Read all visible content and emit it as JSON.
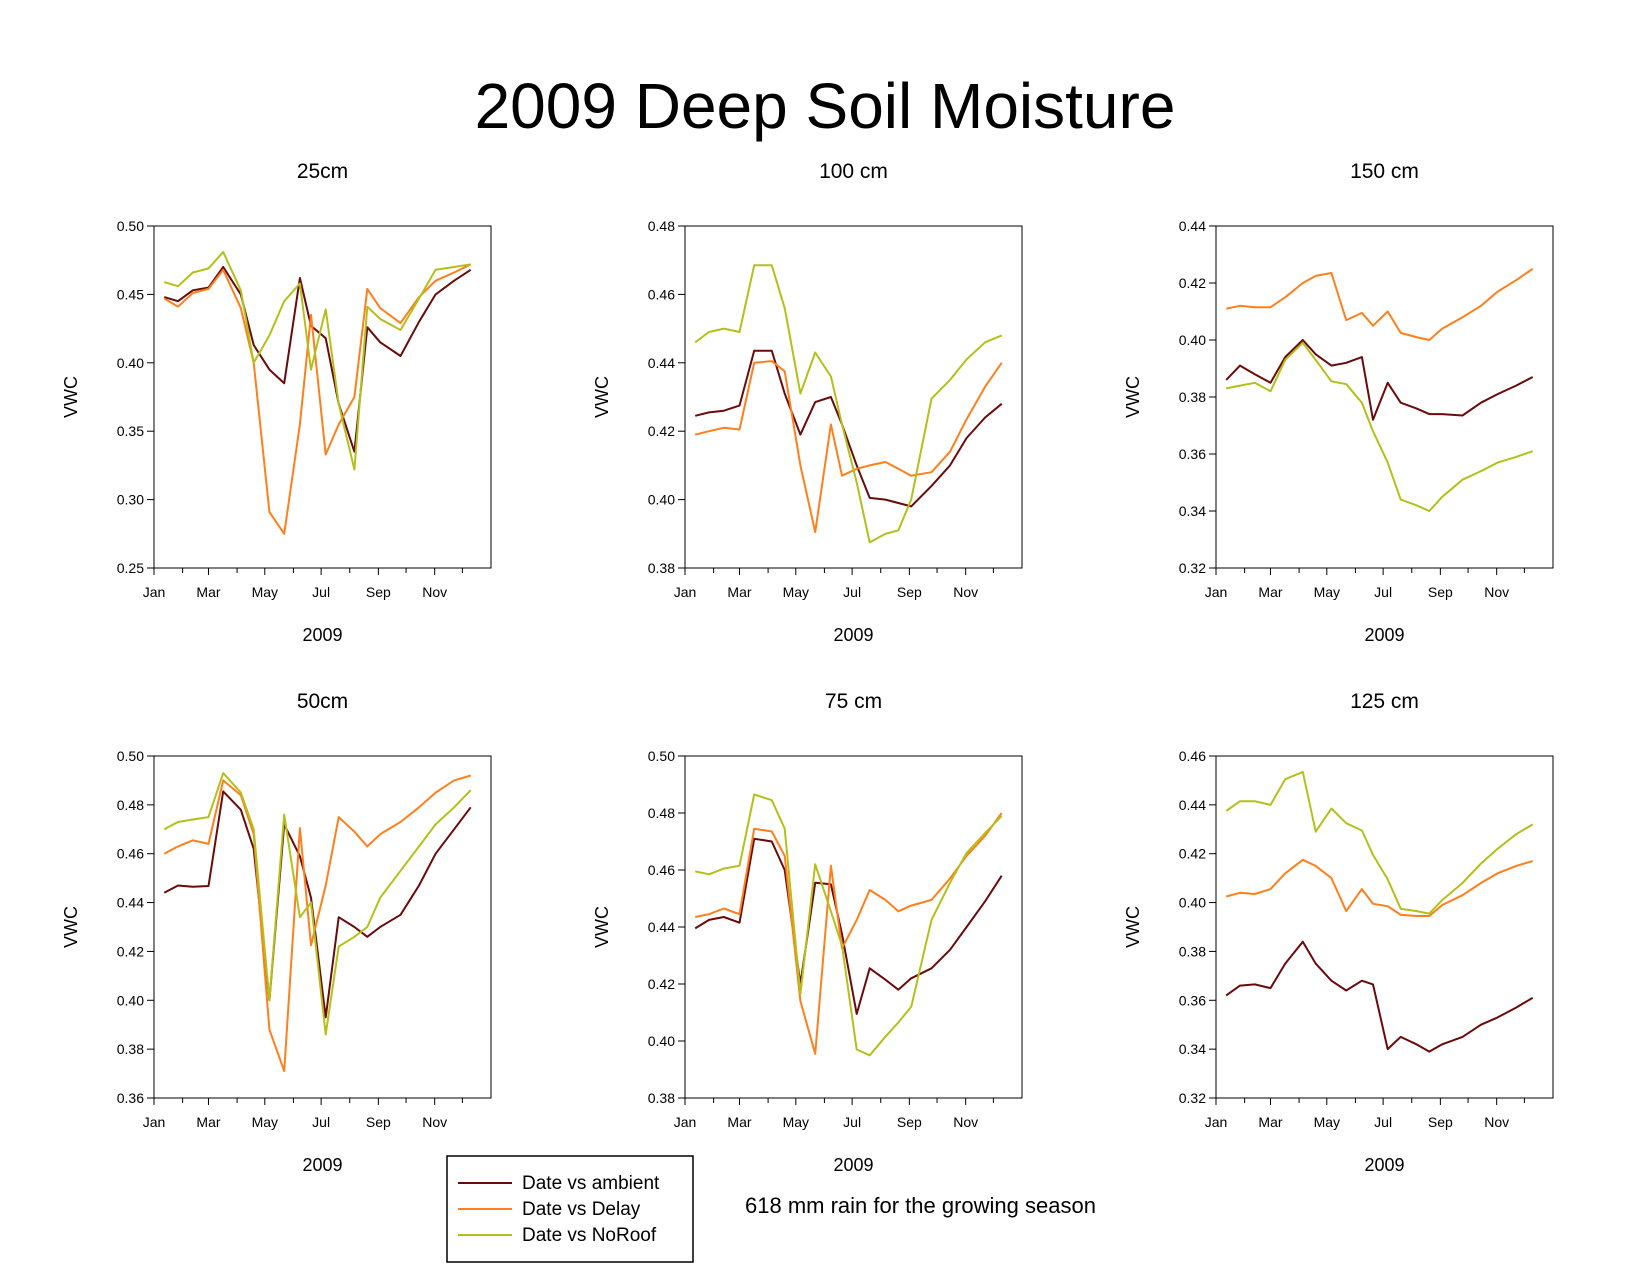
{
  "title": "2009 Deep Soil Moisture",
  "note": "618 mm rain for the growing season",
  "legend": {
    "position": "bottom-center",
    "entries": [
      {
        "label": "Date vs ambient",
        "color": "#6b0a0a"
      },
      {
        "label": "Date vs Delay",
        "color": "#ff7f1c"
      },
      {
        "label": "Date vs NoRoof",
        "color": "#b4c01a"
      }
    ]
  },
  "chart_data": [
    {
      "type": "line",
      "title": "25cm",
      "xlabel": "2009",
      "ylabel": "VWC",
      "xticks": [
        "Jan",
        "Mar",
        "May",
        "Jul",
        "Sep",
        "Nov"
      ],
      "yticks": [
        "0.25",
        "0.30",
        "0.35",
        "0.40",
        "0.45",
        "0.50"
      ],
      "ylim": [
        0.25,
        0.5
      ],
      "x": [
        "2009-01-12",
        "2009-01-27",
        "2009-02-12",
        "2009-03-01",
        "2009-03-17",
        "2009-04-05",
        "2009-04-19",
        "2009-05-06",
        "2009-05-22",
        "2009-06-08",
        "2009-06-20",
        "2009-07-06",
        "2009-07-20",
        "2009-08-06",
        "2009-08-20",
        "2009-09-03",
        "2009-09-25",
        "2009-10-15",
        "2009-11-02",
        "2009-11-22",
        "2009-12-10"
      ],
      "series": [
        {
          "name": "Date vs ambient",
          "values": [
            0.448,
            0.445,
            0.453,
            0.455,
            0.47,
            0.45,
            0.413,
            0.395,
            0.385,
            0.462,
            0.427,
            0.418,
            0.37,
            0.335,
            0.426,
            0.415,
            0.405,
            0.43,
            0.45,
            0.46,
            0.468
          ]
        },
        {
          "name": "Date vs Delay",
          "values": [
            0.447,
            0.441,
            0.451,
            0.454,
            0.468,
            0.44,
            0.4,
            0.291,
            0.275,
            0.355,
            0.435,
            0.333,
            0.355,
            0.375,
            0.454,
            0.44,
            0.429,
            0.448,
            0.46,
            0.466,
            0.472
          ]
        },
        {
          "name": "Date vs NoRoof",
          "values": [
            0.459,
            0.456,
            0.466,
            0.469,
            0.481,
            0.453,
            0.4,
            0.42,
            0.445,
            0.458,
            0.395,
            0.439,
            0.37,
            0.322,
            0.441,
            0.432,
            0.424,
            0.447,
            0.468,
            0.47,
            0.472
          ]
        }
      ]
    },
    {
      "type": "line",
      "title": "100 cm",
      "xlabel": "2009",
      "ylabel": "VWC",
      "xticks": [
        "Jan",
        "Mar",
        "May",
        "Jul",
        "Sep",
        "Nov"
      ],
      "yticks": [
        "0.38",
        "0.40",
        "0.42",
        "0.44",
        "0.46",
        "0.48"
      ],
      "ylim": [
        0.38,
        0.48
      ],
      "x": [
        "2009-01-12",
        "2009-01-27",
        "2009-02-12",
        "2009-03-01",
        "2009-03-17",
        "2009-04-05",
        "2009-04-19",
        "2009-05-06",
        "2009-05-22",
        "2009-06-08",
        "2009-06-20",
        "2009-07-06",
        "2009-07-20",
        "2009-08-06",
        "2009-08-20",
        "2009-09-03",
        "2009-09-25",
        "2009-10-15",
        "2009-11-02",
        "2009-11-22",
        "2009-12-10"
      ],
      "series": [
        {
          "name": "Date vs ambient",
          "values": [
            0.4245,
            0.4255,
            0.426,
            0.4275,
            0.4435,
            0.4435,
            0.431,
            0.419,
            0.4285,
            0.43,
            0.422,
            0.41,
            0.4005,
            0.4,
            0.399,
            0.398,
            0.404,
            0.41,
            0.418,
            0.424,
            0.428
          ]
        },
        {
          "name": "Date vs Delay",
          "values": [
            0.419,
            0.42,
            0.421,
            0.4205,
            0.44,
            0.4405,
            0.4375,
            0.41,
            0.3905,
            0.422,
            0.407,
            0.409,
            0.41,
            0.411,
            0.409,
            0.407,
            0.408,
            0.414,
            0.4235,
            0.433,
            0.44
          ]
        },
        {
          "name": "Date vs NoRoof",
          "values": [
            0.446,
            0.449,
            0.45,
            0.449,
            0.4685,
            0.4685,
            0.456,
            0.431,
            0.443,
            0.436,
            0.422,
            0.405,
            0.3875,
            0.39,
            0.391,
            0.4,
            0.4295,
            0.435,
            0.441,
            0.446,
            0.448
          ]
        }
      ]
    },
    {
      "type": "line",
      "title": "150 cm",
      "xlabel": "2009",
      "ylabel": "VWC",
      "xticks": [
        "Jan",
        "Mar",
        "May",
        "Jul",
        "Sep",
        "Nov"
      ],
      "yticks": [
        "0.32",
        "0.34",
        "0.36",
        "0.38",
        "0.40",
        "0.42",
        "0.44"
      ],
      "ylim": [
        0.32,
        0.44
      ],
      "x": [
        "2009-01-12",
        "2009-01-27",
        "2009-02-12",
        "2009-03-01",
        "2009-03-17",
        "2009-04-05",
        "2009-04-19",
        "2009-05-06",
        "2009-05-22",
        "2009-06-08",
        "2009-06-20",
        "2009-07-06",
        "2009-07-20",
        "2009-08-06",
        "2009-08-20",
        "2009-09-03",
        "2009-09-25",
        "2009-10-15",
        "2009-11-02",
        "2009-11-22",
        "2009-12-10"
      ],
      "series": [
        {
          "name": "Date vs ambient",
          "values": [
            0.386,
            0.391,
            0.388,
            0.385,
            0.394,
            0.4,
            0.395,
            0.391,
            0.392,
            0.394,
            0.372,
            0.385,
            0.378,
            0.376,
            0.374,
            0.374,
            0.3735,
            0.378,
            0.381,
            0.384,
            0.387
          ]
        },
        {
          "name": "Date vs Delay",
          "values": [
            0.411,
            0.412,
            0.4115,
            0.4115,
            0.415,
            0.42,
            0.4225,
            0.4235,
            0.407,
            0.4095,
            0.405,
            0.41,
            0.4025,
            0.401,
            0.4,
            0.404,
            0.408,
            0.412,
            0.417,
            0.421,
            0.425
          ]
        },
        {
          "name": "Date vs NoRoof",
          "values": [
            0.383,
            0.384,
            0.385,
            0.382,
            0.393,
            0.399,
            0.393,
            0.3855,
            0.3845,
            0.378,
            0.368,
            0.357,
            0.344,
            0.342,
            0.34,
            0.345,
            0.351,
            0.354,
            0.357,
            0.359,
            0.361
          ]
        }
      ]
    },
    {
      "type": "line",
      "title": "50cm",
      "xlabel": "2009",
      "ylabel": "VWC",
      "xticks": [
        "Jan",
        "Mar",
        "May",
        "Jul",
        "Sep",
        "Nov"
      ],
      "yticks": [
        "0.36",
        "0.38",
        "0.40",
        "0.42",
        "0.44",
        "0.46",
        "0.48",
        "0.50"
      ],
      "ylim": [
        0.36,
        0.5
      ],
      "x": [
        "2009-01-12",
        "2009-01-27",
        "2009-02-12",
        "2009-03-01",
        "2009-03-17",
        "2009-04-05",
        "2009-04-19",
        "2009-05-06",
        "2009-05-22",
        "2009-06-08",
        "2009-06-20",
        "2009-07-06",
        "2009-07-20",
        "2009-08-06",
        "2009-08-20",
        "2009-09-03",
        "2009-09-25",
        "2009-10-15",
        "2009-11-02",
        "2009-11-22",
        "2009-12-10"
      ],
      "series": [
        {
          "name": "Date vs ambient",
          "values": [
            0.444,
            0.447,
            0.4465,
            0.4468,
            0.4855,
            0.478,
            0.462,
            0.4,
            0.472,
            0.459,
            0.442,
            0.393,
            0.434,
            0.43,
            0.426,
            0.43,
            0.435,
            0.447,
            0.46,
            0.47,
            0.479
          ]
        },
        {
          "name": "Date vs Delay",
          "values": [
            0.46,
            0.463,
            0.4655,
            0.464,
            0.49,
            0.484,
            0.468,
            0.388,
            0.371,
            0.4705,
            0.4225,
            0.447,
            0.475,
            0.469,
            0.463,
            0.468,
            0.473,
            0.479,
            0.485,
            0.49,
            0.492
          ]
        },
        {
          "name": "Date vs NoRoof",
          "values": [
            0.47,
            0.473,
            0.474,
            0.475,
            0.493,
            0.485,
            0.47,
            0.4,
            0.476,
            0.434,
            0.44,
            0.386,
            0.422,
            0.426,
            0.43,
            0.442,
            0.453,
            0.463,
            0.472,
            0.479,
            0.486
          ]
        }
      ]
    },
    {
      "type": "line",
      "title": "75 cm",
      "xlabel": "2009",
      "ylabel": "VWC",
      "xticks": [
        "Jan",
        "Mar",
        "May",
        "Jul",
        "Sep",
        "Nov"
      ],
      "yticks": [
        "0.38",
        "0.40",
        "0.42",
        "0.44",
        "0.46",
        "0.48",
        "0.50"
      ],
      "ylim": [
        0.38,
        0.5
      ],
      "x": [
        "2009-01-12",
        "2009-01-27",
        "2009-02-12",
        "2009-03-01",
        "2009-03-17",
        "2009-04-05",
        "2009-04-19",
        "2009-05-06",
        "2009-05-22",
        "2009-06-08",
        "2009-06-20",
        "2009-07-06",
        "2009-07-20",
        "2009-08-06",
        "2009-08-20",
        "2009-09-03",
        "2009-09-25",
        "2009-10-15",
        "2009-11-02",
        "2009-11-22",
        "2009-12-10"
      ],
      "series": [
        {
          "name": "Date vs ambient",
          "values": [
            0.4395,
            0.4425,
            0.4435,
            0.4415,
            0.471,
            0.47,
            0.46,
            0.42,
            0.4555,
            0.455,
            0.4375,
            0.4095,
            0.4255,
            0.4215,
            0.418,
            0.422,
            0.4255,
            0.432,
            0.44,
            0.449,
            0.458
          ]
        },
        {
          "name": "Date vs Delay",
          "values": [
            0.4435,
            0.4445,
            0.4465,
            0.4445,
            0.4745,
            0.4735,
            0.465,
            0.414,
            0.3955,
            0.4615,
            0.4325,
            0.4425,
            0.453,
            0.4495,
            0.4455,
            0.4475,
            0.4495,
            0.457,
            0.465,
            0.472,
            0.48
          ]
        },
        {
          "name": "Date vs NoRoof",
          "values": [
            0.4595,
            0.4585,
            0.4605,
            0.4615,
            0.4865,
            0.4845,
            0.4745,
            0.4165,
            0.462,
            0.4455,
            0.4335,
            0.397,
            0.395,
            0.4015,
            0.4065,
            0.412,
            0.4425,
            0.4555,
            0.466,
            0.473,
            0.479
          ]
        }
      ]
    },
    {
      "type": "line",
      "title": "125 cm",
      "xlabel": "2009",
      "ylabel": "VWC",
      "xticks": [
        "Jan",
        "Mar",
        "May",
        "Jul",
        "Sep",
        "Nov"
      ],
      "yticks": [
        "0.32",
        "0.34",
        "0.36",
        "0.38",
        "0.40",
        "0.42",
        "0.44",
        "0.46"
      ],
      "ylim": [
        0.32,
        0.46
      ],
      "x": [
        "2009-01-12",
        "2009-01-27",
        "2009-02-12",
        "2009-03-01",
        "2009-03-17",
        "2009-04-05",
        "2009-04-19",
        "2009-05-06",
        "2009-05-22",
        "2009-06-08",
        "2009-06-20",
        "2009-07-06",
        "2009-07-20",
        "2009-08-06",
        "2009-08-20",
        "2009-09-03",
        "2009-09-25",
        "2009-10-15",
        "2009-11-02",
        "2009-11-22",
        "2009-12-10"
      ],
      "series": [
        {
          "name": "Date vs ambient",
          "values": [
            0.362,
            0.366,
            0.3665,
            0.365,
            0.375,
            0.384,
            0.375,
            0.368,
            0.364,
            0.368,
            0.3665,
            0.34,
            0.345,
            0.342,
            0.339,
            0.342,
            0.345,
            0.35,
            0.353,
            0.357,
            0.361
          ]
        },
        {
          "name": "Date vs Delay",
          "values": [
            0.4025,
            0.404,
            0.4035,
            0.4055,
            0.412,
            0.4175,
            0.415,
            0.41,
            0.3965,
            0.4055,
            0.3995,
            0.3985,
            0.395,
            0.3945,
            0.3945,
            0.399,
            0.403,
            0.408,
            0.412,
            0.415,
            0.417
          ]
        },
        {
          "name": "Date vs NoRoof",
          "values": [
            0.4375,
            0.4415,
            0.4415,
            0.44,
            0.4505,
            0.4535,
            0.429,
            0.4385,
            0.4325,
            0.4295,
            0.4195,
            0.4095,
            0.3975,
            0.3965,
            0.3955,
            0.401,
            0.408,
            0.416,
            0.422,
            0.428,
            0.432
          ]
        }
      ]
    }
  ]
}
